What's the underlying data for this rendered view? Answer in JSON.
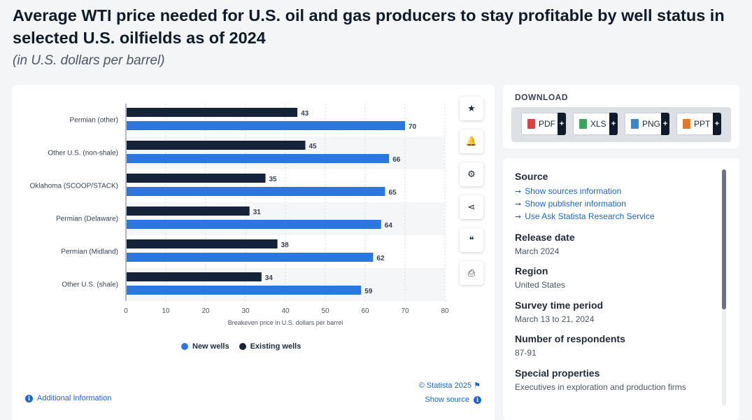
{
  "title": "Average WTI price needed for U.S. oil and gas producers to stay profitable by well status in selected U.S. oilfields as of 2024",
  "subtitle": "(in U.S. dollars per barrel)",
  "chart_data": {
    "type": "bar",
    "orientation": "horizontal",
    "categories": [
      "Permian (other)",
      "Other U.S. (non-shale)",
      "Oklahoma (SCOOP/STACK)",
      "Permian (Delaware)",
      "Permian (Midland)",
      "Other U.S. (shale)"
    ],
    "series": [
      {
        "name": "Existing wells",
        "color": "#14233a",
        "values": [
          43,
          45,
          35,
          31,
          38,
          34
        ]
      },
      {
        "name": "New wells",
        "color": "#2c76df",
        "values": [
          70,
          66,
          65,
          64,
          62,
          59
        ]
      }
    ],
    "xlabel": "Breakeven price in U.S. dollars per barrel",
    "ylabel": "",
    "xlim": [
      0,
      80
    ],
    "xticks": [
      "0",
      "10",
      "20",
      "30",
      "40",
      "50",
      "60",
      "70",
      "80"
    ],
    "grid": true,
    "legend_placement": "bottom",
    "legend": [
      {
        "name": "New wells",
        "color": "#2c76df"
      },
      {
        "name": "Existing wells",
        "color": "#14233a"
      }
    ]
  },
  "chart_footer": {
    "credit": "© Statista 2025",
    "additional_info": "Additional Information",
    "show_source": "Show source"
  },
  "side_toolbar": [
    {
      "name": "favorite-button",
      "icon": "star-icon",
      "glyph": "★"
    },
    {
      "name": "notification-button",
      "icon": "bell-icon",
      "glyph": "🔔"
    },
    {
      "name": "settings-button",
      "icon": "gear-icon",
      "glyph": "⚙"
    },
    {
      "name": "share-button",
      "icon": "share-icon",
      "glyph": "⋖"
    },
    {
      "name": "cite-button",
      "icon": "quote-icon",
      "glyph": "❝"
    },
    {
      "name": "print-button",
      "icon": "printer-icon",
      "glyph": "⎙"
    }
  ],
  "download": {
    "title": "DOWNLOAD",
    "buttons": [
      {
        "label": "PDF",
        "color": "#d64541"
      },
      {
        "label": "XLS",
        "color": "#3aa65b"
      },
      {
        "label": "PNG",
        "color": "#3a86c8"
      },
      {
        "label": "PPT",
        "color": "#e07a2e"
      }
    ],
    "plus": "+"
  },
  "info": {
    "source_heading": "Source",
    "source_links": [
      "Show sources information",
      "Show publisher information",
      "Use Ask Statista Research Service"
    ],
    "release_heading": "Release date",
    "release_value": "March 2024",
    "region_heading": "Region",
    "region_value": "United States",
    "survey_heading": "Survey time period",
    "survey_value": "March 13 to 21, 2024",
    "respondents_heading": "Number of respondents",
    "respondents_value": "87-91",
    "special_heading": "Special properties",
    "special_value": "Executives in exploration and production firms"
  }
}
